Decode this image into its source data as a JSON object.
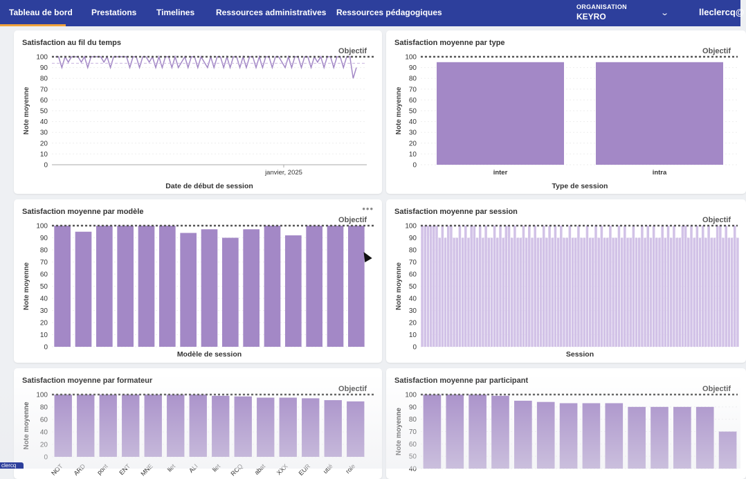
{
  "nav": {
    "items": [
      "Tableau de bord",
      "Prestations",
      "Timelines",
      "Ressources administratives",
      "Ressources pédagogiques"
    ],
    "org_label": "ORGANISATION",
    "org_name": "KEYRO",
    "user": "lleclercq@",
    "accent_color": "#2d3f9c",
    "active_color": "#f0a23b"
  },
  "bottom_tag": "clercq",
  "objective_label": "Objectif",
  "bar_color": "#a388c6",
  "charts": [
    {
      "title": "Satisfaction au fil du temps",
      "chart_data": {
        "type": "line",
        "ylabel": "Note moyenne",
        "xlabel": "Date de début de session",
        "x_tick": "janvier, 2025",
        "yticks": [
          0,
          10,
          20,
          30,
          40,
          50,
          60,
          70,
          80,
          90,
          100
        ],
        "ylim": [
          0,
          100
        ],
        "objective": 100,
        "values": [
          100,
          100,
          90,
          100,
          95,
          100,
          100,
          100,
          95,
          100,
          90,
          100,
          100,
          100,
          100,
          95,
          100,
          90,
          100,
          100,
          100,
          100,
          100,
          90,
          100,
          100,
          90,
          100,
          100,
          95,
          100,
          90,
          100,
          90,
          100,
          100,
          90,
          100,
          90,
          95,
          100,
          90,
          100,
          100,
          90,
          100,
          95,
          90,
          100,
          90,
          100,
          100,
          90,
          100,
          90,
          100,
          100,
          90,
          100,
          90,
          100,
          100,
          90,
          100,
          90,
          100,
          100,
          90,
          100,
          100,
          95,
          90,
          100,
          90,
          100,
          100,
          90,
          100,
          100,
          90,
          100,
          95,
          100,
          90,
          100,
          100,
          90,
          100,
          100,
          90,
          100,
          100,
          80,
          90
        ]
      }
    },
    {
      "title": "Satisfaction moyenne par type",
      "chart_data": {
        "type": "bar",
        "ylabel": "Note moyenne",
        "xlabel": "Type de session",
        "categories": [
          "inter",
          "intra"
        ],
        "values": [
          95,
          95
        ],
        "yticks": [
          0,
          10,
          20,
          30,
          40,
          50,
          60,
          70,
          80,
          90,
          100
        ],
        "ylim": [
          0,
          100
        ],
        "objective": 100
      }
    },
    {
      "title": "Satisfaction moyenne par modèle",
      "chart_data": {
        "type": "bar",
        "ylabel": "Note moyenne",
        "xlabel": "Modèle de session",
        "values": [
          100,
          95,
          100,
          100,
          100,
          100,
          94,
          97,
          90,
          97,
          100,
          92,
          100,
          100,
          100
        ],
        "yticks": [
          0,
          10,
          20,
          30,
          40,
          50,
          60,
          70,
          80,
          90,
          100
        ],
        "ylim": [
          0,
          100
        ],
        "objective": 100
      }
    },
    {
      "title": "Satisfaction moyenne par session",
      "chart_data": {
        "type": "bar",
        "ylabel": "Note moyenne",
        "xlabel": "Session",
        "values": [
          100,
          100,
          100,
          100,
          100,
          100,
          90,
          100,
          90,
          100,
          100,
          90,
          90,
          100,
          90,
          100,
          90,
          100,
          100,
          90,
          100,
          90,
          100,
          90,
          90,
          100,
          90,
          100,
          90,
          100,
          100,
          90,
          100,
          90,
          90,
          100,
          90,
          100,
          90,
          100,
          90,
          90,
          100,
          90,
          100,
          90,
          100,
          90,
          100,
          90,
          90,
          100,
          90,
          90,
          100,
          90,
          90,
          100,
          90,
          90,
          100,
          90,
          100,
          90,
          90,
          100,
          90,
          90,
          100,
          90,
          100,
          90,
          90,
          100,
          90,
          90,
          100,
          90,
          100,
          90,
          100,
          90,
          90,
          100,
          90,
          100,
          90,
          100,
          90,
          90,
          100,
          100,
          90,
          100,
          90,
          100,
          90,
          100,
          90,
          100,
          90,
          90,
          100,
          100,
          90,
          100,
          90,
          90,
          100,
          90
        ],
        "yticks": [
          0,
          10,
          20,
          30,
          40,
          50,
          60,
          70,
          80,
          90,
          100
        ],
        "ylim": [
          0,
          100
        ],
        "objective": 100
      }
    },
    {
      "title": "Satisfaction moyenne par formateur",
      "chart_data": {
        "type": "bar",
        "ylabel": "Note moyenne",
        "categories": [
          "NOT",
          "ARD",
          "pont",
          "ENT",
          "MNE",
          "llet",
          "ALI",
          "llet",
          "RCQ",
          "abat",
          "XXX",
          "EUR",
          "utté",
          "role"
        ],
        "values": [
          100,
          100,
          100,
          100,
          100,
          100,
          100,
          98,
          97,
          95,
          95,
          94,
          91,
          89
        ],
        "yticks": [
          0,
          20,
          40,
          60,
          80,
          100
        ],
        "ylim": [
          0,
          100
        ],
        "objective": 100
      }
    },
    {
      "title": "Satisfaction moyenne par participant",
      "chart_data": {
        "type": "bar",
        "ylabel": "Note moyenne",
        "values": [
          100,
          100,
          100,
          99,
          95,
          94,
          93,
          93,
          93,
          90,
          90,
          90,
          90,
          70
        ],
        "yticks": [
          40,
          50,
          60,
          70,
          80,
          90,
          100
        ],
        "ylim": [
          40,
          100
        ],
        "objective": 100
      }
    }
  ]
}
